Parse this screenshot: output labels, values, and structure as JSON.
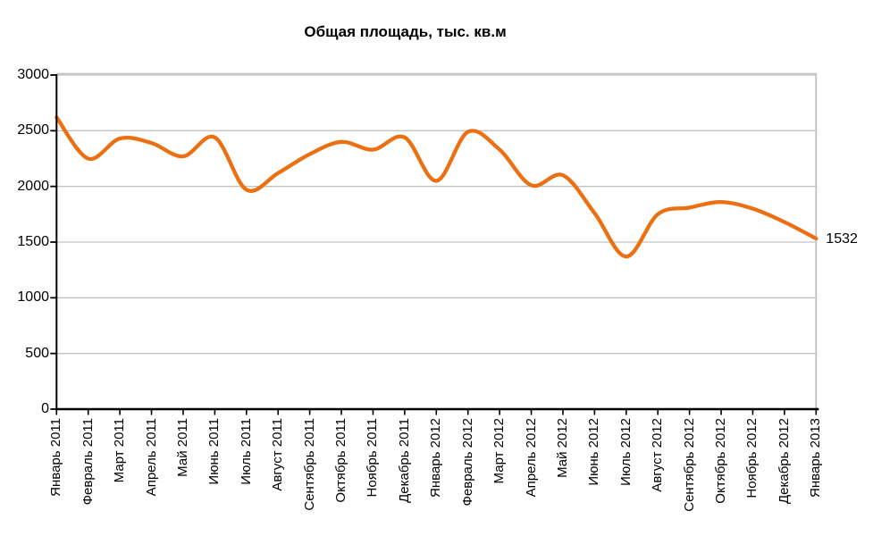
{
  "chart_data": {
    "type": "line",
    "title": "Общая площадь, тыс. кв.м",
    "categories": [
      "Январь 2011",
      "Февраль 2011",
      "Март 2011",
      "Апрель 2011",
      "Май 2011",
      "Июнь 2011",
      "Июль 2011",
      "Август 2011",
      "Сентябрь 2011",
      "Октябрь 2011",
      "Ноябрь 2011",
      "Декабрь 2011",
      "Январь 2012",
      "Февраль 2012",
      "Март 2012",
      "Апрель 2012",
      "Май 2012",
      "Июнь 2012",
      "Июль 2012",
      "Август 2012",
      "Сентябрь 2012",
      "Октябрь 2012",
      "Ноябрь 2012",
      "Декабрь 2012",
      "Январь 2013"
    ],
    "values": [
      2620,
      2250,
      2430,
      2390,
      2270,
      2440,
      1970,
      2120,
      2290,
      2400,
      2330,
      2440,
      2050,
      2490,
      2330,
      2010,
      2100,
      1760,
      1370,
      1750,
      1810,
      1860,
      1800,
      1680,
      1532
    ],
    "xlabel": "",
    "ylabel": "",
    "ylim": [
      0,
      3000
    ],
    "ytick_step": 500,
    "ytick_labels": [
      "0",
      "500",
      "1000",
      "1500",
      "2000",
      "2500",
      "3000"
    ],
    "grid": true,
    "legend": "none",
    "line_style": "smooth",
    "last_point_label": "1532"
  },
  "colors": {
    "line": "#EC6F12",
    "grid": "#C2C2C2",
    "plot_border": "#BFBFBF",
    "axis": "#000000",
    "text": "#000000",
    "background": "#FFFFFF"
  }
}
